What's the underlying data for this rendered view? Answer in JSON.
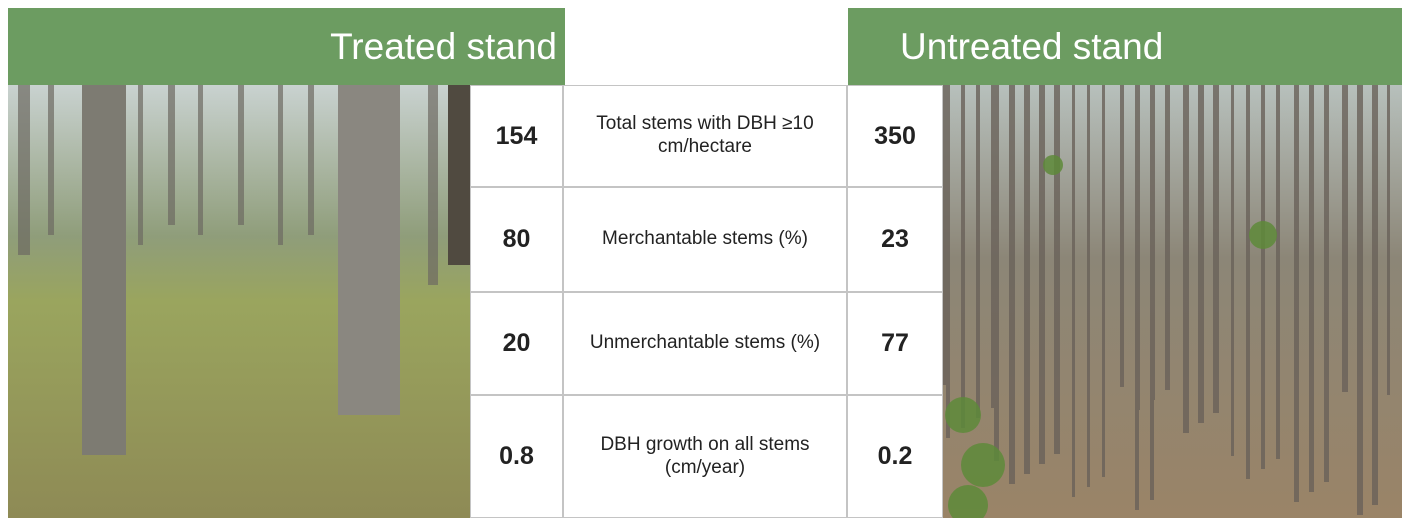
{
  "header": {
    "left_title": "Treated stand",
    "right_title": "Untreated stand"
  },
  "table": {
    "rows": [
      {
        "treated": 154,
        "label": "Total stems with DBH ≥10 cm/hectare",
        "untreated": 350
      },
      {
        "treated": 80,
        "label": "Merchantable stems (%)",
        "untreated": 23
      },
      {
        "treated": 20,
        "label": "Unmerchantable stems (%)",
        "untreated": 77
      },
      {
        "treated": 0.8,
        "label": "DBH growth on all stems (cm/year)",
        "untreated": 0.2
      }
    ]
  }
}
